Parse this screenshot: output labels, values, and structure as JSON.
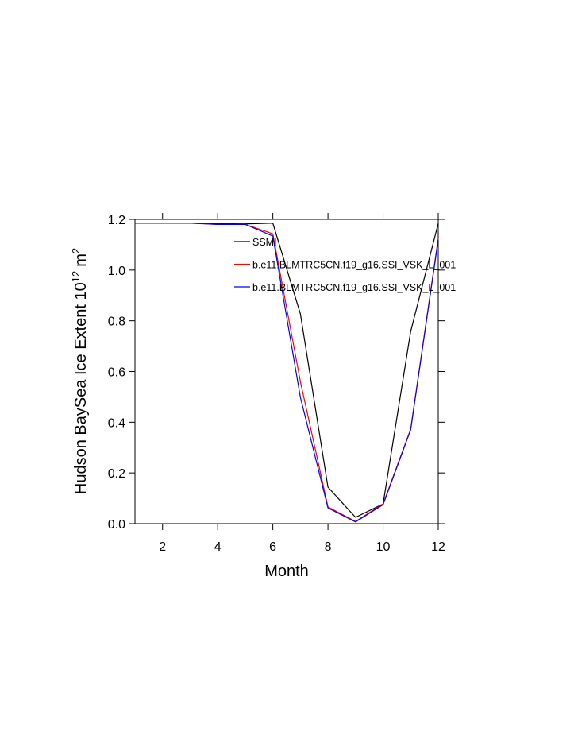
{
  "chart_data": {
    "type": "line",
    "xlabel": "Month",
    "ylabel_parts": [
      "Hudson BaySea Ice Extent 10",
      "12",
      "m",
      "2"
    ],
    "x": [
      1,
      2,
      3,
      4,
      5,
      6,
      7,
      8,
      9,
      10,
      11,
      12
    ],
    "series": [
      {
        "name": "SSMI",
        "color": "#000000",
        "values": [
          1.185,
          1.185,
          1.185,
          1.183,
          1.182,
          1.185,
          0.827,
          0.144,
          0.025,
          0.078,
          0.758,
          1.184
        ]
      },
      {
        "name": "b.e11.BLMTRC5CN.f19_g16.SSI_VSK_L_001",
        "color": "#ff0000",
        "values": [
          1.185,
          1.185,
          1.185,
          1.18,
          1.18,
          1.143,
          0.56,
          0.066,
          0.009,
          0.078,
          0.373,
          1.125
        ]
      },
      {
        "name": "b.e11.BLMTRC5CN.f19_g16.SSI_VSK_L_001",
        "color": "#0000ff",
        "values": [
          1.185,
          1.185,
          1.185,
          1.18,
          1.18,
          1.134,
          0.498,
          0.062,
          0.007,
          0.075,
          0.37,
          1.12
        ]
      }
    ],
    "xlim": [
      1,
      12
    ],
    "xticks": [
      2,
      4,
      6,
      8,
      10,
      12
    ],
    "ylim": [
      0,
      1.2
    ],
    "yticks": [
      {
        "value": 0,
        "label": "0.0"
      },
      0.2,
      0.4,
      0.6,
      0.8,
      {
        "value": 1,
        "label": "1.0"
      },
      1.2
    ],
    "grid": false
  }
}
